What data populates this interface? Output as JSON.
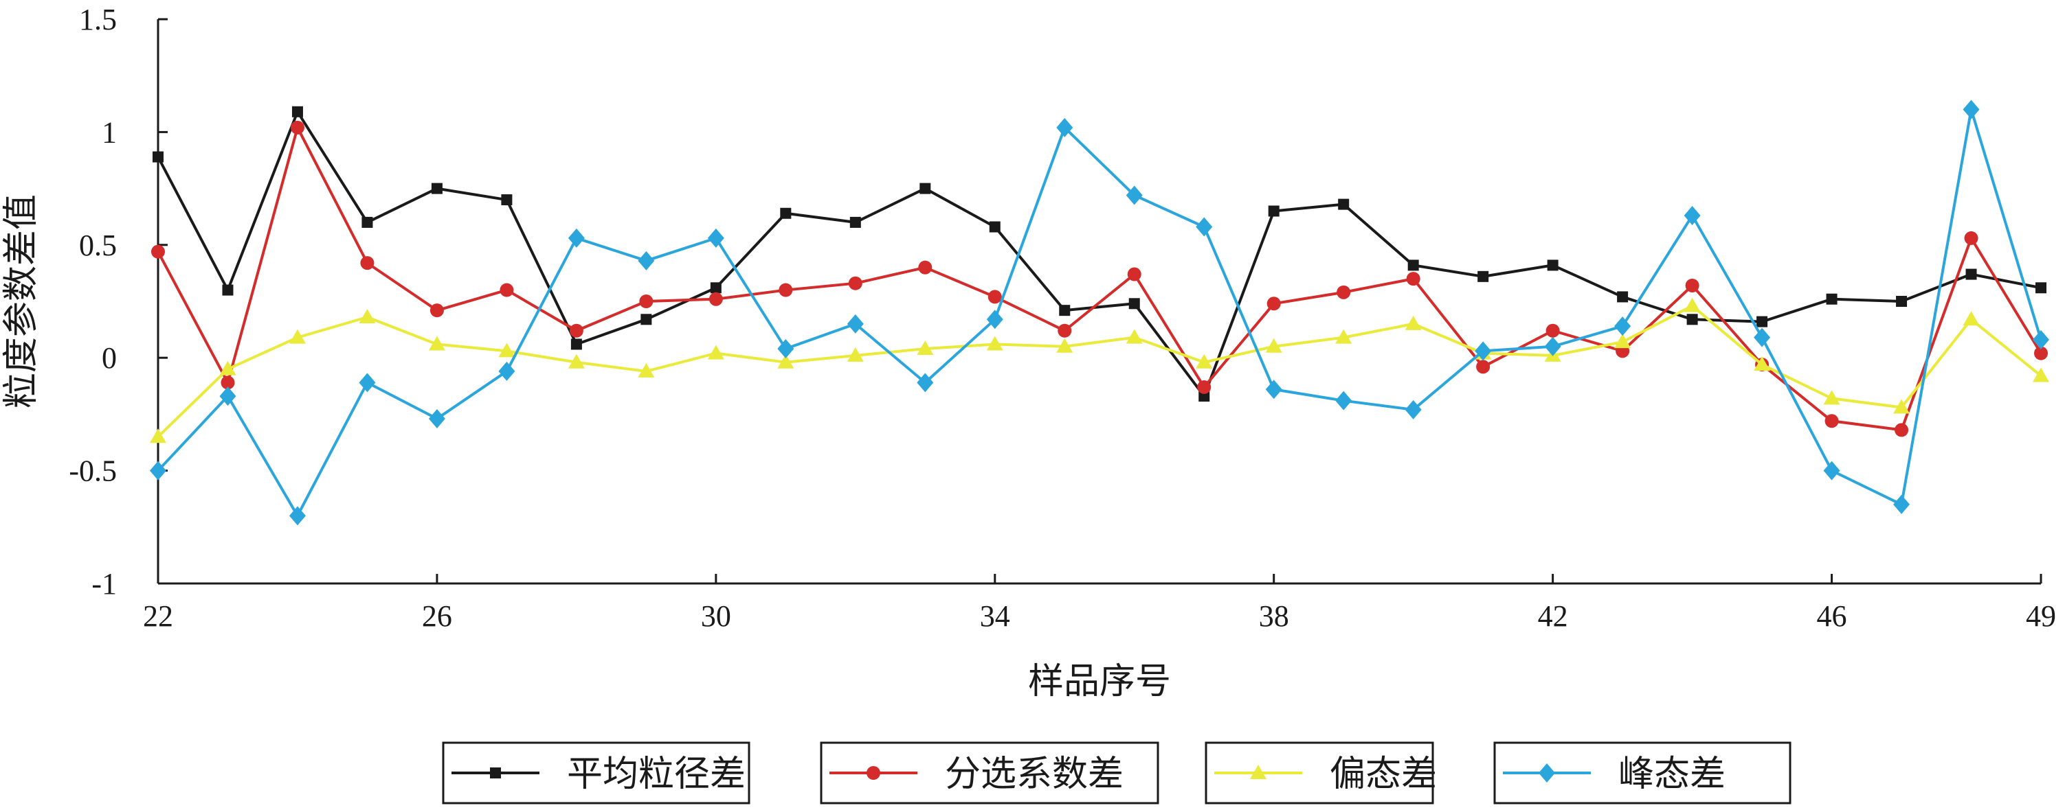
{
  "chart_data": {
    "type": "line",
    "title": "",
    "xlabel": "样品序号",
    "ylabel": "粒度参数差值",
    "x": [
      22,
      23,
      24,
      25,
      26,
      27,
      28,
      29,
      30,
      31,
      32,
      33,
      34,
      35,
      36,
      37,
      38,
      39,
      40,
      41,
      42,
      43,
      44,
      45,
      46,
      47,
      48,
      49
    ],
    "xlim": [
      22,
      49
    ],
    "ylim": [
      -1,
      1.5
    ],
    "xticks": [
      "22",
      "26",
      "30",
      "34",
      "38",
      "42",
      "46",
      "49"
    ],
    "yticks": [
      "1.5",
      "1",
      "0.5",
      "0",
      "-0.5",
      "-1"
    ],
    "grid": false,
    "legend_position": "bottom",
    "series": [
      {
        "name": "平均粒径差",
        "color": "#1a1a1a",
        "marker": "square",
        "values": [
          0.89,
          0.3,
          1.09,
          0.6,
          0.75,
          0.7,
          0.06,
          0.17,
          0.31,
          0.64,
          0.6,
          0.75,
          0.58,
          0.21,
          0.24,
          -0.17,
          0.65,
          0.68,
          0.41,
          0.36,
          0.41,
          0.27,
          0.17,
          0.16,
          0.26,
          0.25,
          0.37,
          0.31
        ]
      },
      {
        "name": "分选系数差",
        "color": "#d42b2b",
        "marker": "circle",
        "values": [
          0.47,
          -0.11,
          1.02,
          0.42,
          0.21,
          0.3,
          0.12,
          0.25,
          0.26,
          0.3,
          0.33,
          0.4,
          0.27,
          0.12,
          0.37,
          -0.13,
          0.24,
          0.29,
          0.35,
          -0.04,
          0.12,
          0.03,
          0.32,
          -0.03,
          -0.28,
          -0.32,
          0.53,
          0.02
        ]
      },
      {
        "name": "偏态差",
        "color": "#eaea3a",
        "marker": "triangle",
        "values": [
          -0.35,
          -0.05,
          0.09,
          0.18,
          0.06,
          0.03,
          -0.02,
          -0.06,
          0.02,
          -0.02,
          0.01,
          0.04,
          0.06,
          0.05,
          0.09,
          -0.02,
          0.05,
          0.09,
          0.15,
          0.02,
          0.01,
          0.07,
          0.23,
          -0.03,
          -0.18,
          -0.22,
          0.17,
          -0.08
        ]
      },
      {
        "name": "峰态差",
        "color": "#2ba6dd",
        "marker": "diamond",
        "values": [
          -0.5,
          -0.17,
          -0.7,
          -0.11,
          -0.27,
          -0.06,
          0.53,
          0.43,
          0.53,
          0.04,
          0.15,
          -0.11,
          0.17,
          1.02,
          0.72,
          0.58,
          -0.14,
          -0.19,
          -0.23,
          0.03,
          0.05,
          0.14,
          0.63,
          0.09,
          -0.5,
          -0.65,
          1.1,
          0.08
        ]
      }
    ]
  }
}
